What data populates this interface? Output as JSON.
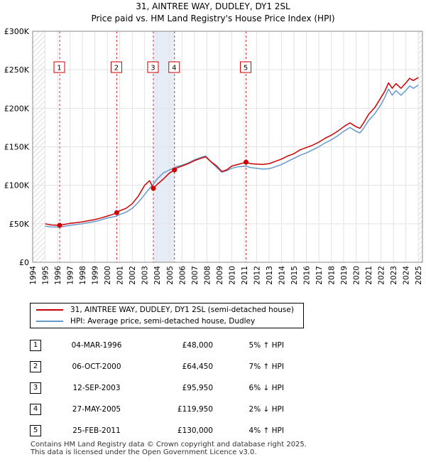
{
  "chart_data": {
    "type": "line",
    "title": "31, AINTREE WAY, DUDLEY, DY1 2SL",
    "subtitle": "Price paid vs. HM Land Registry's House Price Index (HPI)",
    "xlabel": "",
    "ylabel": "",
    "xlim": [
      1994,
      2025.33
    ],
    "ylim": [
      0,
      300000
    ],
    "x_ticks": [
      "1994",
      "1995",
      "1996",
      "1997",
      "1998",
      "1999",
      "2000",
      "2001",
      "2002",
      "2003",
      "2004",
      "2005",
      "2006",
      "2007",
      "2008",
      "2009",
      "2010",
      "2011",
      "2012",
      "2013",
      "2014",
      "2015",
      "2016",
      "2017",
      "2018",
      "2019",
      "2020",
      "2021",
      "2022",
      "2023",
      "2024",
      "2025"
    ],
    "y_ticks": [
      {
        "value": 0,
        "label": "£0"
      },
      {
        "value": 50000,
        "label": "£50K"
      },
      {
        "value": 100000,
        "label": "£100K"
      },
      {
        "value": 150000,
        "label": "£150K"
      },
      {
        "value": 200000,
        "label": "£200K"
      },
      {
        "value": 250000,
        "label": "£250K"
      },
      {
        "value": 300000,
        "label": "£300K"
      }
    ],
    "grid": true,
    "hatched_ranges": [
      [
        1994,
        1995.0
      ],
      [
        2025.0,
        2025.33
      ]
    ],
    "series": [
      {
        "name": "31, AINTREE WAY, DUDLEY, DY1 2SL (semi-detached house)",
        "color": "#cc0000",
        "x": [
          1995.0,
          1995.5,
          1996.17,
          1996.5,
          1997,
          1997.5,
          1998,
          1998.5,
          1999,
          1999.5,
          2000,
          2000.5,
          2000.76,
          2001,
          2001.5,
          2002,
          2002.5,
          2003,
          2003.4,
          2003.7,
          2004,
          2004.5,
          2005,
          2005.4,
          2005.5,
          2006,
          2006.5,
          2007,
          2007.5,
          2007.9,
          2008.3,
          2008.8,
          2009.2,
          2009.6,
          2010,
          2010.5,
          2011.15,
          2011.5,
          2012,
          2012.5,
          2013,
          2013.5,
          2014,
          2014.5,
          2015,
          2015.5,
          2016,
          2016.5,
          2017,
          2017.5,
          2018,
          2018.5,
          2019,
          2019.5,
          2020,
          2020.3,
          2020.6,
          2021,
          2021.5,
          2022,
          2022.3,
          2022.6,
          2022.9,
          2023.2,
          2023.6,
          2024,
          2024.3,
          2024.6,
          2025
        ],
        "y": [
          50000,
          48500,
          48000,
          49000,
          50500,
          51500,
          52500,
          54000,
          55500,
          57500,
          60000,
          62500,
          64450,
          67000,
          70000,
          76000,
          86000,
          100000,
          106000,
          95950,
          101000,
          108000,
          116000,
          119950,
          122000,
          125000,
          128000,
          132000,
          135000,
          137000,
          131000,
          125000,
          118000,
          120000,
          125000,
          127000,
          130000,
          128000,
          127500,
          127000,
          128000,
          131000,
          134000,
          138000,
          141000,
          146000,
          149000,
          152000,
          156000,
          161000,
          165000,
          170000,
          176000,
          181000,
          176000,
          174000,
          181000,
          192000,
          201000,
          214000,
          222000,
          233000,
          226000,
          232000,
          226000,
          233000,
          239000,
          236000,
          240000
        ]
      },
      {
        "name": "HPI: Average price, semi-detached house, Dudley",
        "color": "#6699cc",
        "x": [
          1995.0,
          1995.5,
          1996.17,
          1996.5,
          1997,
          1997.5,
          1998,
          1998.5,
          1999,
          1999.5,
          2000,
          2000.5,
          2000.76,
          2001,
          2001.5,
          2002,
          2002.5,
          2003,
          2003.4,
          2003.7,
          2004,
          2004.5,
          2005,
          2005.4,
          2005.5,
          2006,
          2006.5,
          2007,
          2007.5,
          2007.9,
          2008.3,
          2008.8,
          2009.2,
          2009.6,
          2010,
          2010.5,
          2011.15,
          2011.5,
          2012,
          2012.5,
          2013,
          2013.5,
          2014,
          2014.5,
          2015,
          2015.5,
          2016,
          2016.5,
          2017,
          2017.5,
          2018,
          2018.5,
          2019,
          2019.5,
          2020,
          2020.3,
          2020.6,
          2021,
          2021.5,
          2022,
          2022.3,
          2022.6,
          2022.9,
          2023.2,
          2023.6,
          2024,
          2024.3,
          2024.6,
          2025
        ],
        "y": [
          47000,
          46000,
          45700,
          46500,
          48000,
          49000,
          50000,
          51500,
          53000,
          55000,
          57500,
          59000,
          60200,
          62000,
          65000,
          70000,
          78000,
          88000,
          96000,
          101500,
          108000,
          116000,
          120000,
          122500,
          124000,
          126000,
          129000,
          133000,
          136000,
          138000,
          131000,
          123000,
          117000,
          119000,
          122000,
          124000,
          125000,
          123000,
          122000,
          121000,
          121500,
          124000,
          127000,
          131000,
          135000,
          139000,
          142000,
          146000,
          150000,
          155000,
          159000,
          164000,
          170000,
          175000,
          170000,
          168000,
          174000,
          184000,
          193000,
          205000,
          214000,
          225000,
          217000,
          223000,
          217000,
          223000,
          229000,
          226000,
          230000
        ]
      }
    ],
    "transactions": [
      {
        "num": "1",
        "date": "04-MAR-1996",
        "price": "£48,000",
        "hpi": "5% ↑ HPI",
        "x": 1996.17,
        "y": 48000
      },
      {
        "num": "2",
        "date": "06-OCT-2000",
        "price": "£64,450",
        "hpi": "7% ↑ HPI",
        "x": 2000.76,
        "y": 64450
      },
      {
        "num": "3",
        "date": "12-SEP-2003",
        "price": "£95,950",
        "hpi": "6% ↓ HPI",
        "x": 2003.7,
        "y": 95950
      },
      {
        "num": "4",
        "date": "27-MAY-2005",
        "price": "£119,950",
        "hpi": "2% ↓ HPI",
        "x": 2005.4,
        "y": 119950
      },
      {
        "num": "5",
        "date": "25-FEB-2011",
        "price": "£130,000",
        "hpi": "4% ↑ HPI",
        "x": 2011.15,
        "y": 130000
      }
    ]
  },
  "legend": {
    "property_label": "31, AINTREE WAY, DUDLEY, DY1 2SL (semi-detached house)",
    "hpi_label": "HPI: Average price, semi-detached house, Dudley",
    "property_color": "#cc0000",
    "hpi_color": "#6699cc"
  },
  "footer": {
    "line1": "Contains HM Land Registry data © Crown copyright and database right 2025.",
    "line2": "This data is licensed under the Open Government Licence v3.0."
  }
}
